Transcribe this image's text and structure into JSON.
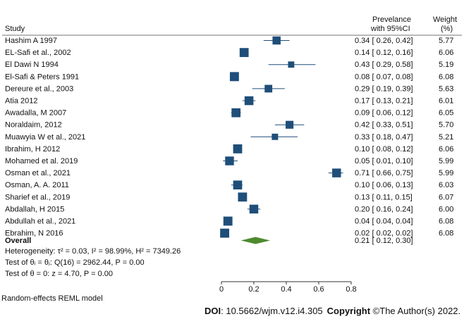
{
  "chart_data": {
    "type": "forest",
    "headers": {
      "study": "Study",
      "prev_line1": "Prevelance",
      "prev_line2": "with 95%CI",
      "weight_line1": "Weight",
      "weight_line2": "(%)"
    },
    "studies": [
      {
        "name": "Hashim A 1997",
        "est": 0.34,
        "lo": 0.26,
        "hi": 0.42,
        "weight": 5.77,
        "ci_text": "0.34 [  0.26,  0.42]",
        "weight_text": "5.77"
      },
      {
        "name": "EL-Safi et al., 2002",
        "est": 0.14,
        "lo": 0.12,
        "hi": 0.16,
        "weight": 6.06,
        "ci_text": "0.14 [  0.12,  0.16]",
        "weight_text": "6.06"
      },
      {
        "name": "El Dawi N 1994",
        "est": 0.43,
        "lo": 0.29,
        "hi": 0.58,
        "weight": 5.19,
        "ci_text": "0.43 [  0.29,  0.58]",
        "weight_text": "5.19"
      },
      {
        "name": "El-Safi & Peters 1991",
        "est": 0.08,
        "lo": 0.07,
        "hi": 0.08,
        "weight": 6.08,
        "ci_text": "0.08 [  0.07,  0.08]",
        "weight_text": "6.08"
      },
      {
        "name": "Dereure et al., 2003",
        "est": 0.29,
        "lo": 0.19,
        "hi": 0.39,
        "weight": 5.63,
        "ci_text": "0.29 [  0.19,  0.39]",
        "weight_text": "5.63"
      },
      {
        "name": "Atia 2012",
        "est": 0.17,
        "lo": 0.13,
        "hi": 0.21,
        "weight": 6.01,
        "ci_text": "0.17 [  0.13,  0.21]",
        "weight_text": "6.01"
      },
      {
        "name": "Awadalla, M 2007",
        "est": 0.09,
        "lo": 0.06,
        "hi": 0.12,
        "weight": 6.05,
        "ci_text": "0.09 [  0.06,  0.12]",
        "weight_text": "6.05"
      },
      {
        "name": "Noraldaim, 2012",
        "est": 0.42,
        "lo": 0.33,
        "hi": 0.51,
        "weight": 5.7,
        "ci_text": "0.42 [  0.33,  0.51]",
        "weight_text": "5.70"
      },
      {
        "name": "Muawyia W et al., 2021",
        "est": 0.33,
        "lo": 0.18,
        "hi": 0.47,
        "weight": 5.21,
        "ci_text": "0.33 [  0.18,  0.47]",
        "weight_text": "5.21"
      },
      {
        "name": "Ibrahim, H 2012",
        "est": 0.1,
        "lo": 0.08,
        "hi": 0.12,
        "weight": 6.06,
        "ci_text": "0.10 [  0.08,  0.12]",
        "weight_text": "6.06"
      },
      {
        "name": "Mohamed et al. 2019",
        "est": 0.05,
        "lo": 0.01,
        "hi": 0.1,
        "weight": 5.99,
        "ci_text": "0.05 [  0.01,  0.10]",
        "weight_text": "5.99"
      },
      {
        "name": "Osman et al., 2021",
        "est": 0.71,
        "lo": 0.66,
        "hi": 0.75,
        "weight": 5.99,
        "ci_text": "0.71 [  0.66,  0.75]",
        "weight_text": "5.99"
      },
      {
        "name": "Osman, A. A. 2011",
        "est": 0.1,
        "lo": 0.06,
        "hi": 0.13,
        "weight": 6.03,
        "ci_text": "0.10 [  0.06,  0.13]",
        "weight_text": "6.03"
      },
      {
        "name": "Sharief et al., 2019",
        "est": 0.13,
        "lo": 0.11,
        "hi": 0.15,
        "weight": 6.07,
        "ci_text": "0.13 [  0.11,  0.15]",
        "weight_text": "6.07"
      },
      {
        "name": "Abdallah, H 2015",
        "est": 0.2,
        "lo": 0.16,
        "hi": 0.24,
        "weight": 6.0,
        "ci_text": "0.20 [  0.16,  0.24]",
        "weight_text": "6.00"
      },
      {
        "name": "Abdullah  et al., 2021",
        "est": 0.04,
        "lo": 0.04,
        "hi": 0.04,
        "weight": 6.08,
        "ci_text": "0.04 [  0.04,  0.04]",
        "weight_text": "6.08"
      },
      {
        "name": "Ebrahim, N 2016",
        "est": 0.02,
        "lo": 0.02,
        "hi": 0.02,
        "weight": 6.08,
        "ci_text": "0.02 [  0.02,  0.02]",
        "weight_text": "6.08"
      }
    ],
    "overall": {
      "label": "Overall",
      "est": 0.21,
      "lo": 0.12,
      "hi": 0.3,
      "ci_text": "0.21 [  0.12,  0.30]"
    },
    "stats": [
      "Heterogeneity: τ² = 0.03, I² = 98.99%, H² = 7349.26",
      "Test of θᵢ = θⱼ: Q(16) = 2962.44,  P = 0.00",
      "Test of θ = 0: z = 4.70,  P = 0.00"
    ],
    "model_note": "Random-effects REML model",
    "xlim": [
      0,
      0.8
    ],
    "xticks": [
      0,
      0.2,
      0.4,
      0.6,
      0.8
    ],
    "xtick_labels": [
      "0",
      "0.2",
      "0.4",
      "0.6",
      "0.8"
    ],
    "colors": {
      "marker": "#1f4e79",
      "diamond": "#4e8a2e",
      "ci_line": "#1f4e79"
    }
  },
  "footer": {
    "doi_label": "DOI",
    "doi_value": ": 10.5662/wjm.v12.i4.305",
    "copyright_label": "Copyright",
    "copyright_value": " ©The Author(s) 2022."
  }
}
